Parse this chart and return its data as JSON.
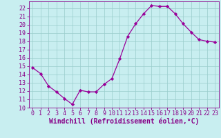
{
  "x": [
    0,
    1,
    2,
    3,
    4,
    5,
    6,
    7,
    8,
    9,
    10,
    11,
    12,
    13,
    14,
    15,
    16,
    17,
    18,
    19,
    20,
    21,
    22,
    23
  ],
  "y": [
    14.8,
    14.1,
    12.6,
    11.9,
    11.1,
    10.4,
    12.1,
    11.9,
    11.9,
    12.8,
    13.5,
    15.9,
    18.6,
    20.1,
    21.3,
    22.3,
    22.2,
    22.2,
    21.3,
    20.1,
    19.1,
    18.2,
    18.0,
    17.9
  ],
  "line_color": "#990099",
  "marker": "D",
  "marker_size": 2.2,
  "bg_color": "#c8eef0",
  "grid_color": "#99cccc",
  "xlabel": "Windchill (Refroidissement éolien,°C)",
  "label_color": "#880088",
  "tick_color": "#880088",
  "ylim": [
    10,
    22.8
  ],
  "xlim": [
    -0.5,
    23.5
  ],
  "yticks": [
    10,
    11,
    12,
    13,
    14,
    15,
    16,
    17,
    18,
    19,
    20,
    21,
    22
  ],
  "xticks": [
    0,
    1,
    2,
    3,
    4,
    5,
    6,
    7,
    8,
    9,
    10,
    11,
    12,
    13,
    14,
    15,
    16,
    17,
    18,
    19,
    20,
    21,
    22,
    23
  ],
  "tick_fontsize": 6.0,
  "xlabel_fontsize": 7.0
}
